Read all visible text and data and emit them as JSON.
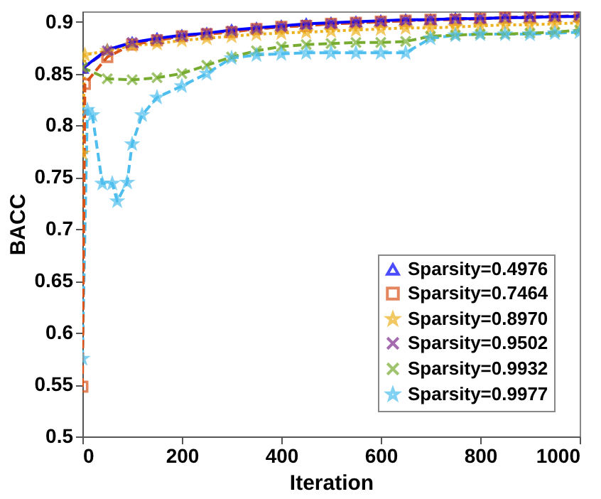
{
  "chart_data": {
    "type": "line",
    "xlabel": "Iteration",
    "ylabel": "BACC",
    "xlim": [
      0,
      1000
    ],
    "xticks": [
      0,
      200,
      400,
      600,
      800,
      1000
    ],
    "ylim": [
      0.5,
      0.91
    ],
    "yticks": [
      0.5,
      0.55,
      0.6,
      0.65,
      0.7,
      0.75,
      0.8,
      0.85,
      0.9
    ],
    "grid": false,
    "legend": "bottom right",
    "series": [
      {
        "name": "Sparsity=0.4976",
        "color": "#0000ff",
        "marker": "triangle",
        "line_style": "solid",
        "x": [
          0,
          50,
          100,
          150,
          200,
          250,
          300,
          350,
          400,
          450,
          500,
          550,
          600,
          650,
          700,
          750,
          800,
          850,
          900,
          950,
          1000
        ],
        "values": [
          0.855,
          0.873,
          0.88,
          0.884,
          0.887,
          0.889,
          0.892,
          0.894,
          0.896,
          0.898,
          0.899,
          0.9,
          0.901,
          0.902,
          0.902,
          0.903,
          0.903,
          0.904,
          0.904,
          0.905,
          0.905
        ]
      },
      {
        "name": "Sparsity=0.7464",
        "color": "#d95319",
        "marker": "square",
        "line_style": "dashed",
        "x": [
          0,
          5,
          50,
          100,
          150,
          200,
          250,
          300,
          350,
          400,
          450,
          500,
          550,
          600,
          650,
          700,
          750,
          800,
          850,
          900,
          950,
          1000
        ],
        "values": [
          0.548,
          0.84,
          0.866,
          0.878,
          0.882,
          0.886,
          0.888,
          0.89,
          0.893,
          0.895,
          0.896,
          0.898,
          0.899,
          0.9,
          0.901,
          0.902,
          0.902,
          0.903,
          0.904,
          0.904,
          0.905,
          0.905
        ]
      },
      {
        "name": "Sparsity=0.8970",
        "color": "#edb120",
        "marker": "star",
        "line_style": "dotted",
        "x": [
          0,
          5,
          50,
          100,
          150,
          200,
          250,
          300,
          350,
          400,
          450,
          500,
          550,
          600,
          650,
          700,
          750,
          800,
          850,
          900,
          950,
          1000
        ],
        "values": [
          0.773,
          0.868,
          0.872,
          0.877,
          0.879,
          0.882,
          0.884,
          0.886,
          0.888,
          0.889,
          0.89,
          0.891,
          0.892,
          0.893,
          0.894,
          0.894,
          0.895,
          0.896,
          0.897,
          0.897,
          0.898,
          0.899
        ]
      },
      {
        "name": "Sparsity=0.9502",
        "color": "#7e2f8e",
        "marker": "cross",
        "line_style": "dashed",
        "x": [
          0,
          50,
          100,
          150,
          200,
          250,
          300,
          350,
          400,
          450,
          500,
          550,
          600,
          650,
          700,
          750,
          800,
          850,
          900,
          950,
          1000
        ],
        "values": [
          0.855,
          0.872,
          0.88,
          0.883,
          0.886,
          0.889,
          0.891,
          0.893,
          0.895,
          0.897,
          0.898,
          0.899,
          0.9,
          0.901,
          0.902,
          0.903,
          0.903,
          0.904,
          0.905,
          0.905,
          0.906
        ]
      },
      {
        "name": "Sparsity=0.9932",
        "color": "#77ac30",
        "marker": "cross",
        "line_style": "dashed",
        "x": [
          0,
          50,
          100,
          150,
          200,
          250,
          300,
          350,
          400,
          450,
          500,
          550,
          600,
          650,
          700,
          750,
          800,
          850,
          900,
          950,
          1000
        ],
        "values": [
          0.856,
          0.845,
          0.844,
          0.846,
          0.85,
          0.858,
          0.866,
          0.872,
          0.876,
          0.878,
          0.879,
          0.88,
          0.88,
          0.881,
          0.886,
          0.887,
          0.888,
          0.888,
          0.889,
          0.89,
          0.892
        ]
      },
      {
        "name": "Sparsity=0.9977",
        "color": "#4dbeee",
        "marker": "star",
        "line_style": "dashed",
        "x": [
          0,
          10,
          20,
          40,
          60,
          70,
          90,
          100,
          120,
          150,
          200,
          250,
          300,
          350,
          400,
          450,
          500,
          550,
          600,
          650,
          700,
          750,
          800,
          850,
          900,
          950,
          1000
        ],
        "values": [
          0.575,
          0.815,
          0.81,
          0.744,
          0.744,
          0.727,
          0.745,
          0.782,
          0.81,
          0.827,
          0.838,
          0.85,
          0.865,
          0.868,
          0.869,
          0.87,
          0.87,
          0.87,
          0.87,
          0.87,
          0.884,
          0.887,
          0.888,
          0.888,
          0.888,
          0.889,
          0.89
        ]
      }
    ]
  }
}
